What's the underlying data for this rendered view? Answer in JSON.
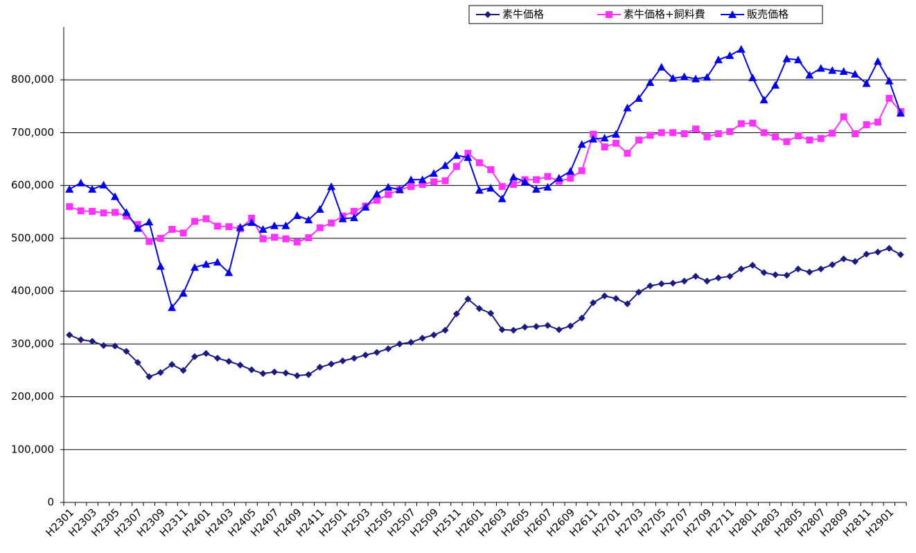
{
  "chart_data": {
    "type": "line",
    "categories": [
      "H2301",
      null,
      "H2303",
      null,
      "H2305",
      null,
      "H2307",
      null,
      "H2309",
      null,
      "H2311",
      null,
      "H2401",
      null,
      "H2403",
      null,
      "H2405",
      null,
      "H2407",
      null,
      "H2409",
      null,
      "H2411",
      null,
      "H2501",
      null,
      "H2503",
      null,
      "H2505",
      null,
      "H2507",
      null,
      "H2509",
      null,
      "H2511",
      null,
      "H2601",
      null,
      "H2603",
      null,
      "H2605",
      null,
      "H2607",
      null,
      "H2609",
      null,
      "H2611",
      null,
      "H2701",
      null,
      "H2703",
      null,
      "H2705",
      null,
      "H2707",
      null,
      "H2709",
      null,
      "H2711",
      null,
      "H2801",
      null,
      "H2803",
      null,
      "H2805",
      null,
      "H2807",
      null,
      "H2809",
      null,
      "H2811",
      null,
      "H2901",
      null
    ],
    "series": [
      {
        "name": "素牛価格",
        "color": "#1a1a80",
        "marker": "diamond",
        "values": [
          317000,
          308000,
          305000,
          297000,
          296000,
          286000,
          265000,
          238000,
          246000,
          261000,
          250000,
          276000,
          282000,
          273000,
          267000,
          260000,
          251000,
          244000,
          247000,
          245000,
          240000,
          242000,
          256000,
          262000,
          268000,
          273000,
          279000,
          284000,
          291000,
          300000,
          303000,
          311000,
          317000,
          326000,
          357000,
          385000,
          367000,
          358000,
          327000,
          326000,
          332000,
          333000,
          335000,
          327000,
          334000,
          349000,
          378000,
          391000,
          386000,
          376000,
          398000,
          410000,
          414000,
          415000,
          419000,
          428000,
          419000,
          425000,
          428000,
          442000,
          449000,
          435000,
          431000,
          430000,
          442000,
          436000,
          442000,
          450000,
          461000,
          456000,
          470000,
          474000,
          481000,
          469000
        ]
      },
      {
        "name": "素牛価格+飼料費",
        "color": "#ff33ff",
        "marker": "square",
        "values": [
          560000,
          552000,
          551000,
          548000,
          549000,
          542000,
          526000,
          494000,
          500000,
          517000,
          510000,
          532000,
          537000,
          523000,
          522000,
          518000,
          538000,
          499000,
          502000,
          499000,
          493000,
          501000,
          520000,
          529000,
          542000,
          551000,
          561000,
          572000,
          583000,
          592000,
          598000,
          602000,
          607000,
          609000,
          636000,
          661000,
          643000,
          630000,
          598000,
          602000,
          611000,
          611000,
          617000,
          608000,
          614000,
          628000,
          697000,
          673000,
          680000,
          661000,
          686000,
          695000,
          700000,
          700000,
          698000,
          707000,
          692000,
          698000,
          702000,
          717000,
          718000,
          700000,
          692000,
          683000,
          694000,
          686000,
          689000,
          699000,
          730000,
          698000,
          715000,
          720000,
          765000,
          740000
        ]
      },
      {
        "name": "販売価格",
        "color": "#0000ee",
        "marker": "triangle",
        "values": [
          593000,
          605000,
          593000,
          601000,
          579000,
          549000,
          519000,
          531000,
          447000,
          369000,
          396000,
          445000,
          451000,
          455000,
          435000,
          521000,
          530000,
          517000,
          524000,
          524000,
          543000,
          535000,
          555000,
          598000,
          537000,
          539000,
          559000,
          584000,
          597000,
          592000,
          611000,
          611000,
          623000,
          638000,
          657000,
          653000,
          591000,
          595000,
          575000,
          616000,
          607000,
          593000,
          597000,
          614000,
          627000,
          678000,
          688000,
          690000,
          697000,
          747000,
          765000,
          795000,
          824000,
          803000,
          806000,
          802000,
          805000,
          838000,
          846000,
          858000,
          804000,
          762000,
          790000,
          840000,
          838000,
          809000,
          822000,
          818000,
          816000,
          811000,
          793000,
          835000,
          798000,
          737000
        ]
      }
    ],
    "ylim": [
      0,
      900000
    ],
    "yticks": [
      0,
      {
        "value": 100000,
        "label": "100,000"
      },
      {
        "value": 200000,
        "label": "200,000"
      },
      {
        "value": 300000,
        "label": "300,000"
      },
      {
        "value": 400000,
        "label": "400,000"
      },
      {
        "value": 500000,
        "label": "500,000"
      },
      {
        "value": 600000,
        "label": "600,000"
      },
      {
        "value": 700000,
        "label": "700,000"
      },
      {
        "value": 800000,
        "label": "800,000"
      }
    ],
    "grid": true,
    "legend": "top-right"
  }
}
